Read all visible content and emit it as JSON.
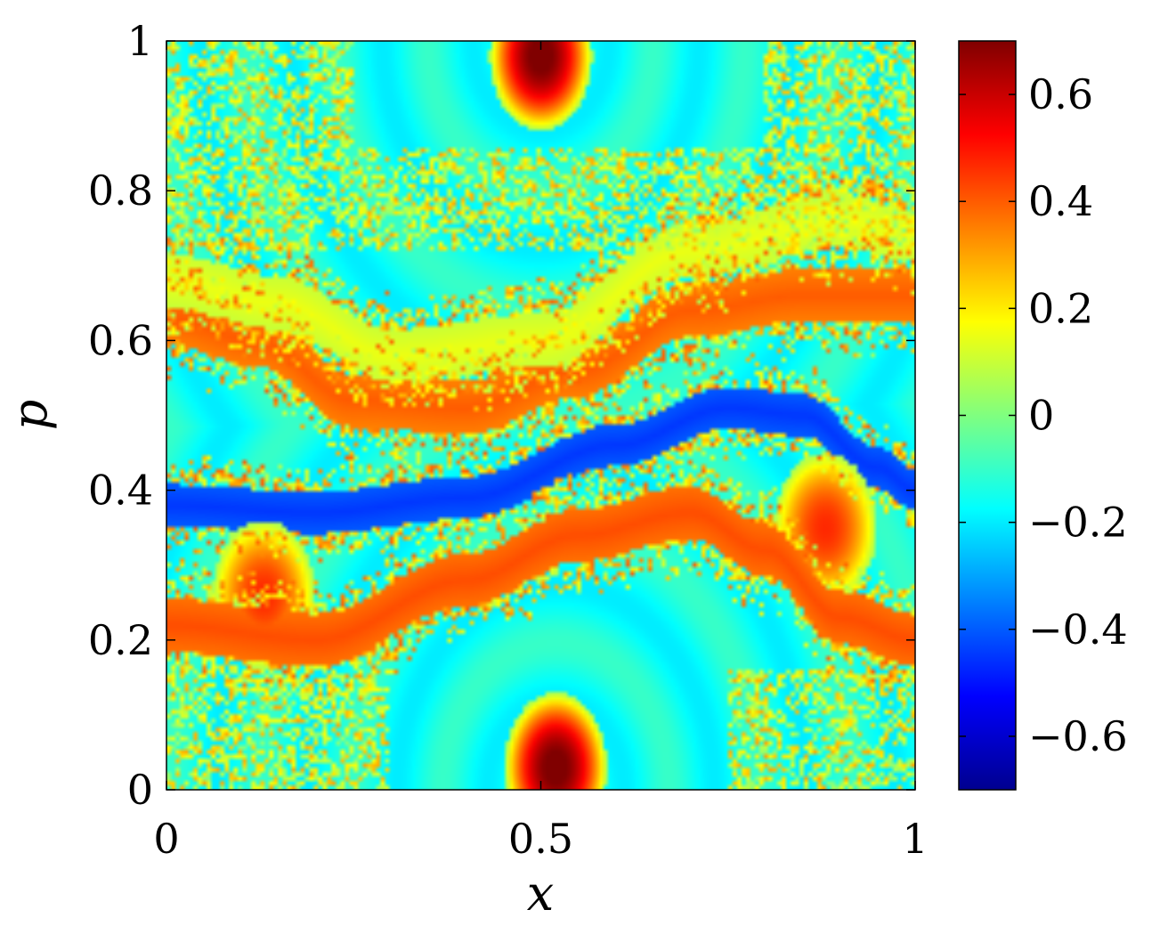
{
  "chart_data": {
    "type": "heatmap",
    "title": "",
    "xlabel": "x",
    "ylabel": "p",
    "xlim": [
      0,
      1
    ],
    "ylim": [
      0,
      1
    ],
    "x_ticks": [
      {
        "value": 0,
        "label": "0"
      },
      {
        "value": 0.5,
        "label": "0.5"
      },
      {
        "value": 1,
        "label": "1"
      }
    ],
    "y_ticks": [
      {
        "value": 0,
        "label": "0"
      },
      {
        "value": 0.2,
        "label": "0.2"
      },
      {
        "value": 0.4,
        "label": "0.4"
      },
      {
        "value": 0.6,
        "label": "0.6"
      },
      {
        "value": 0.8,
        "label": "0.8"
      },
      {
        "value": 1,
        "label": "1"
      }
    ],
    "colorbar": {
      "colormap": "jet",
      "range": [
        -0.7,
        0.7
      ],
      "ticks": [
        {
          "value": 0.6,
          "label": "0.6"
        },
        {
          "value": 0.4,
          "label": "0.4"
        },
        {
          "value": 0.2,
          "label": "0.2"
        },
        {
          "value": 0,
          "label": "0"
        },
        {
          "value": -0.2,
          "label": "−0.2"
        },
        {
          "value": -0.4,
          "label": "−0.4"
        },
        {
          "value": -0.6,
          "label": "−0.6"
        }
      ]
    },
    "grid": false,
    "grid_resolution": [
      168,
      168
    ],
    "features": [
      {
        "kind": "blob",
        "x": 0.5,
        "p": 0.98,
        "value": 0.68
      },
      {
        "kind": "blob",
        "x": 0.52,
        "p": 0.03,
        "value": 0.68
      },
      {
        "kind": "blob",
        "x": 0.13,
        "p": 0.26,
        "value": 0.42
      },
      {
        "kind": "blob",
        "x": 0.88,
        "p": 0.35,
        "value": 0.42
      },
      {
        "kind": "band",
        "centers": [
          [
            0,
            0.63
          ],
          [
            0.12,
            0.6
          ],
          [
            0.25,
            0.52
          ],
          [
            0.4,
            0.51
          ],
          [
            0.55,
            0.56
          ],
          [
            0.7,
            0.64
          ],
          [
            0.85,
            0.66
          ],
          [
            1,
            0.66
          ]
        ],
        "value": 0.4
      },
      {
        "kind": "band",
        "centers": [
          [
            0,
            0.68
          ],
          [
            0.15,
            0.65
          ],
          [
            0.3,
            0.58
          ],
          [
            0.5,
            0.6
          ],
          [
            0.7,
            0.72
          ],
          [
            0.9,
            0.76
          ],
          [
            1,
            0.74
          ]
        ],
        "value": 0.15
      },
      {
        "kind": "band",
        "centers": [
          [
            0,
            0.38
          ],
          [
            0.2,
            0.37
          ],
          [
            0.4,
            0.39
          ],
          [
            0.6,
            0.46
          ],
          [
            0.75,
            0.51
          ],
          [
            0.85,
            0.5
          ],
          [
            0.95,
            0.43
          ],
          [
            1,
            0.4
          ]
        ],
        "value": -0.45
      },
      {
        "kind": "band",
        "centers": [
          [
            0,
            0.22
          ],
          [
            0.2,
            0.2
          ],
          [
            0.4,
            0.28
          ],
          [
            0.55,
            0.34
          ],
          [
            0.7,
            0.37
          ],
          [
            0.8,
            0.32
          ],
          [
            0.9,
            0.23
          ],
          [
            1,
            0.2
          ]
        ],
        "value": 0.42
      }
    ]
  }
}
